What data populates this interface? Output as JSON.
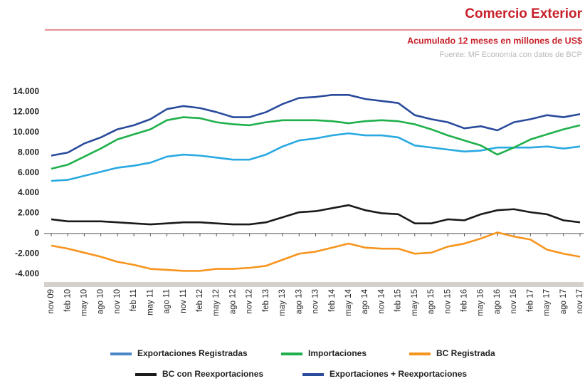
{
  "chart_data": {
    "type": "line",
    "title": "Comercio Exterior",
    "subtitle": "Acumulado 12 meses en millones de US$",
    "source": "Fuente: MF Economía con datos de BCP",
    "categories": [
      "nov 09",
      "feb 10",
      "may 10",
      "ago 10",
      "nov 10",
      "feb 11",
      "may 11",
      "ago 11",
      "nov 11",
      "feb 12",
      "may 12",
      "ago 12",
      "nov 12",
      "feb 13",
      "may 13",
      "ago 13",
      "nov 13",
      "feb 14",
      "may 14",
      "ago 14",
      "nov 14",
      "feb 15",
      "may 15",
      "ago 15",
      "nov 15",
      "feb 16",
      "may 16",
      "ago 16",
      "nov 16",
      "feb 17",
      "may 17",
      "ago 17",
      "nov 17"
    ],
    "series": [
      {
        "name": "Exportaciones Registradas",
        "color": "#29a9e1",
        "legend_color": "#4a86c5",
        "values": [
          5200,
          5300,
          5700,
          6100,
          6500,
          6700,
          7000,
          7600,
          7800,
          7700,
          7500,
          7300,
          7300,
          7800,
          8600,
          9200,
          9400,
          9700,
          9900,
          9700,
          9700,
          9500,
          8700,
          8500,
          8300,
          8100,
          8200,
          8500,
          8500,
          8500,
          8600,
          8400,
          8600
        ]
      },
      {
        "name": "Importaciones",
        "color": "#1fb04b",
        "values": [
          6400,
          6800,
          7600,
          8400,
          9300,
          9800,
          10300,
          11200,
          11500,
          11400,
          11000,
          10800,
          10700,
          11000,
          11200,
          11200,
          11200,
          11100,
          10900,
          11100,
          11200,
          11100,
          10800,
          10300,
          9700,
          9200,
          8700,
          7800,
          8500,
          9300,
          9800,
          10300,
          10700
        ]
      },
      {
        "name": "BC Registrada",
        "color": "#f7941d",
        "values": [
          -1200,
          -1500,
          -1900,
          -2300,
          -2800,
          -3100,
          -3500,
          -3600,
          -3700,
          -3700,
          -3500,
          -3500,
          -3400,
          -3200,
          -2600,
          -2000,
          -1800,
          -1400,
          -1000,
          -1400,
          -1500,
          -1500,
          -2000,
          -1900,
          -1300,
          -1000,
          -500,
          100,
          -300,
          -600,
          -1600,
          -2000,
          -2300
        ]
      },
      {
        "name": "BC con Reexportaciones",
        "color": "#1a1a1a",
        "values": [
          1400,
          1200,
          1200,
          1200,
          1100,
          1000,
          900,
          1000,
          1100,
          1100,
          1000,
          900,
          900,
          1100,
          1600,
          2100,
          2200,
          2500,
          2800,
          2300,
          2000,
          1900,
          1000,
          1000,
          1400,
          1300,
          1900,
          2300,
          2400,
          2100,
          1900,
          1300,
          1100
        ]
      },
      {
        "name": "Exportaciones + Reexportaciones",
        "color": "#2a4b9c",
        "values": [
          7700,
          8000,
          8900,
          9500,
          10300,
          10700,
          11300,
          12300,
          12600,
          12400,
          12000,
          11500,
          11500,
          12000,
          12800,
          13400,
          13500,
          13700,
          13700,
          13300,
          13100,
          12900,
          11700,
          11300,
          11000,
          10400,
          10600,
          10200,
          11000,
          11300,
          11700,
          11500,
          11800
        ]
      }
    ],
    "ylim": [
      -4800,
      15200
    ],
    "yticks": [
      {
        "value": -4000,
        "label": "-4.000"
      },
      {
        "value": -2000,
        "label": "-2.000"
      },
      0,
      {
        "value": 2000,
        "label": "2.000"
      },
      {
        "value": 4000,
        "label": "4.000"
      },
      {
        "value": 6000,
        "label": "6.000"
      },
      {
        "value": 8000,
        "label": "8.000"
      },
      {
        "value": 10000,
        "label": "10.000"
      },
      {
        "value": 12000,
        "label": "12.000"
      },
      {
        "value": 14000,
        "label": "14.000"
      }
    ],
    "grid": false
  }
}
